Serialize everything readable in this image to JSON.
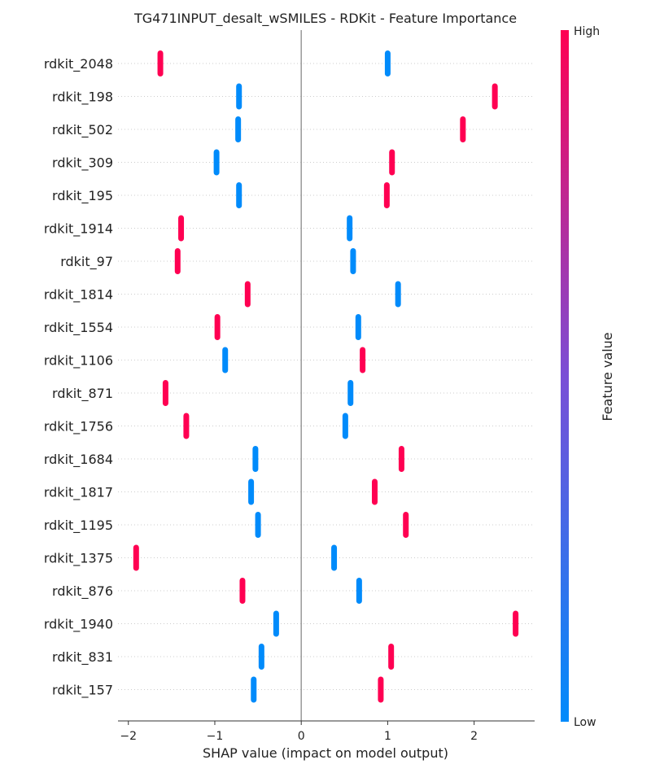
{
  "chart_data": {
    "type": "scatter",
    "subtype": "shap-beeswarm",
    "title": "TG471INPUT_desalt_wSMILES - RDKit - Feature Importance",
    "xlabel": "SHAP value (impact on model output)",
    "ylabel": "",
    "xlim": [
      -2.12,
      2.7
    ],
    "xticks": [
      -2,
      -1,
      0,
      1,
      2
    ],
    "xtick_labels": [
      "−2",
      "−1",
      "0",
      "1",
      "2"
    ],
    "grid": false,
    "colorbar": {
      "label": "Feature value",
      "high_label": "High",
      "low_label": "Low",
      "high_color": "#ff0052",
      "mid_color": "#7a4fd6",
      "low_color": "#008bfb"
    },
    "features": [
      {
        "name": "rdkit_2048",
        "high_value_shap": -1.63,
        "low_value_shap": 1.0
      },
      {
        "name": "rdkit_198",
        "high_value_shap": 2.24,
        "low_value_shap": -0.72
      },
      {
        "name": "rdkit_502",
        "high_value_shap": 1.87,
        "low_value_shap": -0.73
      },
      {
        "name": "rdkit_309",
        "high_value_shap": 1.05,
        "low_value_shap": -0.98
      },
      {
        "name": "rdkit_195",
        "high_value_shap": 0.99,
        "low_value_shap": -0.72
      },
      {
        "name": "rdkit_1914",
        "high_value_shap": -1.39,
        "low_value_shap": 0.56
      },
      {
        "name": "rdkit_97",
        "high_value_shap": -1.43,
        "low_value_shap": 0.6
      },
      {
        "name": "rdkit_1814",
        "high_value_shap": -0.62,
        "low_value_shap": 1.12
      },
      {
        "name": "rdkit_1554",
        "high_value_shap": -0.97,
        "low_value_shap": 0.66
      },
      {
        "name": "rdkit_1106",
        "high_value_shap": 0.71,
        "low_value_shap": -0.88
      },
      {
        "name": "rdkit_871",
        "high_value_shap": -1.57,
        "low_value_shap": 0.57
      },
      {
        "name": "rdkit_1756",
        "high_value_shap": -1.33,
        "low_value_shap": 0.51
      },
      {
        "name": "rdkit_1684",
        "high_value_shap": 1.16,
        "low_value_shap": -0.53
      },
      {
        "name": "rdkit_1817",
        "high_value_shap": 0.85,
        "low_value_shap": -0.58
      },
      {
        "name": "rdkit_1195",
        "high_value_shap": 1.21,
        "low_value_shap": -0.5
      },
      {
        "name": "rdkit_1375",
        "high_value_shap": -1.91,
        "low_value_shap": 0.38
      },
      {
        "name": "rdkit_876",
        "high_value_shap": -0.68,
        "low_value_shap": 0.67
      },
      {
        "name": "rdkit_1940",
        "high_value_shap": 2.48,
        "low_value_shap": -0.29
      },
      {
        "name": "rdkit_831",
        "high_value_shap": 1.04,
        "low_value_shap": -0.46
      },
      {
        "name": "rdkit_157",
        "high_value_shap": 0.92,
        "low_value_shap": -0.55
      }
    ]
  }
}
